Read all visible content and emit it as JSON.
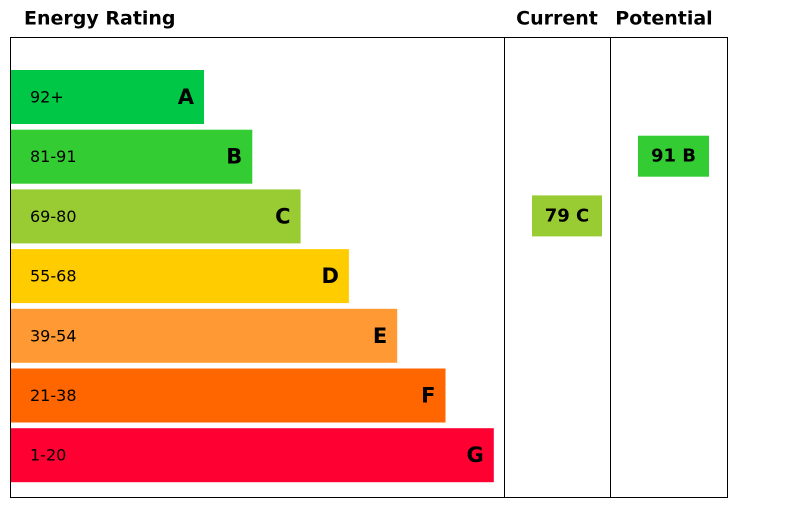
{
  "header": {
    "title": "Energy Rating",
    "current": "Current",
    "potential": "Potential"
  },
  "bands": [
    {
      "range": "92+",
      "letter": "A",
      "color": "#00c846"
    },
    {
      "range": "81-91",
      "letter": "B",
      "color": "#33cc33"
    },
    {
      "range": "69-80",
      "letter": "C",
      "color": "#99cc33"
    },
    {
      "range": "55-68",
      "letter": "D",
      "color": "#ffcc00"
    },
    {
      "range": "39-54",
      "letter": "E",
      "color": "#ff9933"
    },
    {
      "range": "21-38",
      "letter": "F",
      "color": "#ff6600"
    },
    {
      "range": "1-20",
      "letter": "G",
      "color": "#ff0033"
    }
  ],
  "current": {
    "label": "79 C"
  },
  "potential": {
    "label": "91 B"
  }
}
